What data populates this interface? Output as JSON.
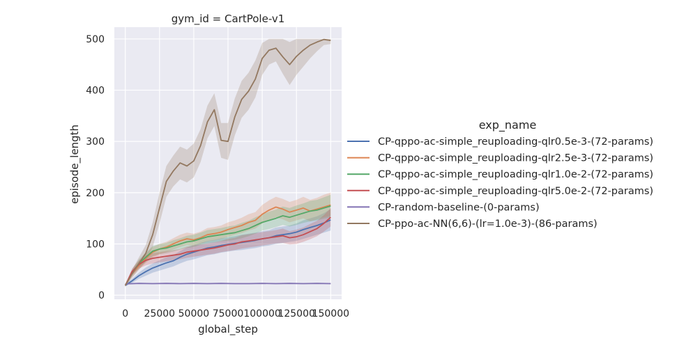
{
  "chart_data": {
    "type": "line",
    "title": "gym_id = CartPole-v1",
    "xlabel": "global_step",
    "ylabel": "episode_length",
    "xlim": [
      -8000,
      158000
    ],
    "ylim": [
      -8,
      523
    ],
    "xticks": [
      0,
      25000,
      50000,
      75000,
      100000,
      125000,
      150000
    ],
    "yticks": [
      0,
      100,
      200,
      300,
      400,
      500
    ],
    "grid": true,
    "legend_title": "exp_name",
    "legend_position": "right",
    "series": [
      {
        "name": "CP-qppo-ac-simple_reuploading-qlr0.5e-3-(72-params)",
        "color": "#4c72b0",
        "x": [
          0,
          5000,
          10000,
          15000,
          20000,
          25000,
          30000,
          35000,
          40000,
          45000,
          50000,
          55000,
          60000,
          65000,
          70000,
          75000,
          80000,
          85000,
          90000,
          95000,
          100000,
          105000,
          110000,
          115000,
          120000,
          125000,
          130000,
          135000,
          140000,
          145000,
          150000
        ],
        "y": [
          19,
          28,
          38,
          46,
          53,
          58,
          63,
          67,
          74,
          80,
          84,
          88,
          92,
          94,
          97,
          99,
          101,
          103,
          105,
          107,
          110,
          112,
          116,
          118,
          120,
          123,
          128,
          132,
          136,
          141,
          147
        ],
        "lo": [
          17,
          24,
          32,
          38,
          44,
          48,
          52,
          56,
          62,
          67,
          70,
          74,
          78,
          80,
          83,
          85,
          87,
          88,
          90,
          92,
          95,
          97,
          100,
          102,
          104,
          106,
          110,
          114,
          118,
          122,
          126
        ],
        "hi": [
          21,
          32,
          44,
          54,
          62,
          68,
          74,
          78,
          86,
          93,
          98,
          102,
          106,
          108,
          111,
          113,
          115,
          118,
          120,
          122,
          125,
          127,
          132,
          134,
          136,
          140,
          146,
          150,
          154,
          160,
          168
        ]
      },
      {
        "name": "CP-qppo-ac-simple_reuploading-qlr2.5e-3-(72-params)",
        "color": "#dd8452",
        "x": [
          0,
          5000,
          10000,
          15000,
          20000,
          25000,
          30000,
          35000,
          40000,
          45000,
          50000,
          55000,
          60000,
          65000,
          70000,
          75000,
          80000,
          85000,
          90000,
          95000,
          100000,
          105000,
          110000,
          115000,
          120000,
          125000,
          130000,
          135000,
          140000,
          145000,
          150000
        ],
        "y": [
          19,
          42,
          58,
          72,
          84,
          90,
          94,
          100,
          106,
          110,
          108,
          112,
          118,
          120,
          123,
          128,
          132,
          136,
          142,
          146,
          158,
          166,
          172,
          168,
          162,
          166,
          170,
          164,
          168,
          172,
          176
        ],
        "lo": [
          17,
          36,
          50,
          63,
          74,
          80,
          84,
          89,
          94,
          98,
          96,
          100,
          105,
          107,
          110,
          114,
          118,
          121,
          126,
          130,
          140,
          147,
          152,
          148,
          142,
          146,
          150,
          144,
          148,
          152,
          155
        ],
        "hi": [
          21,
          48,
          66,
          81,
          94,
          100,
          104,
          111,
          118,
          122,
          120,
          124,
          131,
          133,
          136,
          142,
          146,
          151,
          158,
          162,
          176,
          185,
          192,
          188,
          182,
          186,
          192,
          186,
          190,
          196,
          200
        ]
      },
      {
        "name": "CP-qppo-ac-simple_reuploading-qlr1.0e-2-(72-params)",
        "color": "#55a868",
        "x": [
          0,
          5000,
          10000,
          15000,
          20000,
          25000,
          30000,
          35000,
          40000,
          45000,
          50000,
          55000,
          60000,
          65000,
          70000,
          75000,
          80000,
          85000,
          90000,
          95000,
          100000,
          105000,
          110000,
          115000,
          120000,
          125000,
          130000,
          135000,
          140000,
          145000,
          150000
        ],
        "y": [
          19,
          44,
          62,
          74,
          86,
          90,
          92,
          96,
          100,
          104,
          106,
          110,
          114,
          116,
          118,
          120,
          122,
          126,
          130,
          136,
          142,
          146,
          150,
          155,
          152,
          156,
          160,
          164,
          166,
          170,
          174
        ],
        "lo": [
          17,
          38,
          54,
          65,
          76,
          80,
          82,
          85,
          89,
          92,
          94,
          98,
          101,
          103,
          105,
          106,
          108,
          111,
          115,
          120,
          126,
          129,
          133,
          137,
          134,
          137,
          141,
          144,
          146,
          149,
          152
        ],
        "hi": [
          21,
          50,
          70,
          83,
          96,
          100,
          102,
          107,
          111,
          116,
          118,
          122,
          127,
          129,
          131,
          134,
          136,
          141,
          145,
          152,
          158,
          163,
          167,
          173,
          170,
          175,
          179,
          184,
          186,
          191,
          196
        ]
      },
      {
        "name": "CP-qppo-ac-simple_reuploading-qlr5.0e-2-(72-params)",
        "color": "#c44e52",
        "x": [
          0,
          5000,
          10000,
          15000,
          20000,
          25000,
          30000,
          35000,
          40000,
          45000,
          50000,
          55000,
          60000,
          65000,
          70000,
          75000,
          80000,
          85000,
          90000,
          95000,
          100000,
          105000,
          110000,
          115000,
          120000,
          125000,
          130000,
          135000,
          140000,
          145000,
          150000
        ],
        "y": [
          19,
          46,
          60,
          68,
          72,
          74,
          76,
          78,
          80,
          84,
          86,
          88,
          90,
          92,
          95,
          98,
          100,
          104,
          106,
          108,
          110,
          112,
          114,
          116,
          112,
          114,
          118,
          124,
          130,
          140,
          152
        ],
        "lo": [
          17,
          40,
          52,
          58,
          62,
          64,
          66,
          68,
          70,
          73,
          75,
          77,
          79,
          81,
          84,
          86,
          88,
          91,
          93,
          95,
          97,
          99,
          101,
          102,
          99,
          100,
          104,
          109,
          115,
          124,
          134
        ],
        "hi": [
          21,
          52,
          68,
          78,
          82,
          84,
          86,
          88,
          90,
          95,
          97,
          99,
          101,
          103,
          106,
          110,
          112,
          117,
          119,
          121,
          123,
          125,
          127,
          130,
          125,
          128,
          132,
          139,
          145,
          156,
          170
        ]
      },
      {
        "name": "CP-random-baseline-(0-params)",
        "color": "#8172b3",
        "x": [
          0,
          10000,
          20000,
          30000,
          40000,
          50000,
          60000,
          70000,
          80000,
          90000,
          100000,
          110000,
          120000,
          130000,
          140000,
          150000
        ],
        "y": [
          22,
          23,
          22.5,
          23,
          22.5,
          23,
          22.5,
          23,
          22.5,
          22.5,
          23,
          22.5,
          23,
          22.5,
          23,
          22.5
        ],
        "lo": [
          21,
          22,
          21.5,
          22,
          21.5,
          22,
          21.5,
          22,
          21.5,
          21.5,
          22,
          21.5,
          22,
          21.5,
          22,
          21.5
        ],
        "hi": [
          23,
          24,
          23.5,
          24,
          23.5,
          24,
          23.5,
          24,
          23.5,
          23.5,
          24,
          23.5,
          24,
          23.5,
          24,
          23.5
        ]
      },
      {
        "name": "CP-ppo-ac-NN(6,6)-(lr=1.0e-3)-(86-params)",
        "color": "#937860",
        "x": [
          0,
          5000,
          10000,
          15000,
          20000,
          25000,
          30000,
          35000,
          40000,
          45000,
          50000,
          55000,
          60000,
          65000,
          70000,
          75000,
          80000,
          85000,
          90000,
          95000,
          100000,
          105000,
          110000,
          115000,
          120000,
          125000,
          130000,
          135000,
          140000,
          145000,
          150000
        ],
        "y": [
          19,
          42,
          62,
          82,
          118,
          170,
          222,
          242,
          258,
          252,
          262,
          292,
          338,
          362,
          302,
          300,
          348,
          382,
          398,
          422,
          462,
          478,
          482,
          465,
          450,
          466,
          478,
          488,
          494,
          499,
          497
        ],
        "lo": [
          17,
          34,
          50,
          66,
          94,
          140,
          192,
          212,
          226,
          220,
          230,
          260,
          306,
          330,
          268,
          264,
          312,
          346,
          362,
          386,
          430,
          450,
          456,
          432,
          410,
          430,
          446,
          462,
          476,
          488,
          490
        ],
        "hi": [
          21,
          50,
          74,
          98,
          142,
          200,
          252,
          272,
          290,
          284,
          296,
          324,
          370,
          394,
          336,
          336,
          384,
          418,
          434,
          458,
          492,
          500,
          500,
          500,
          494,
          500,
          500,
          500,
          500,
          500,
          500
        ]
      }
    ]
  }
}
